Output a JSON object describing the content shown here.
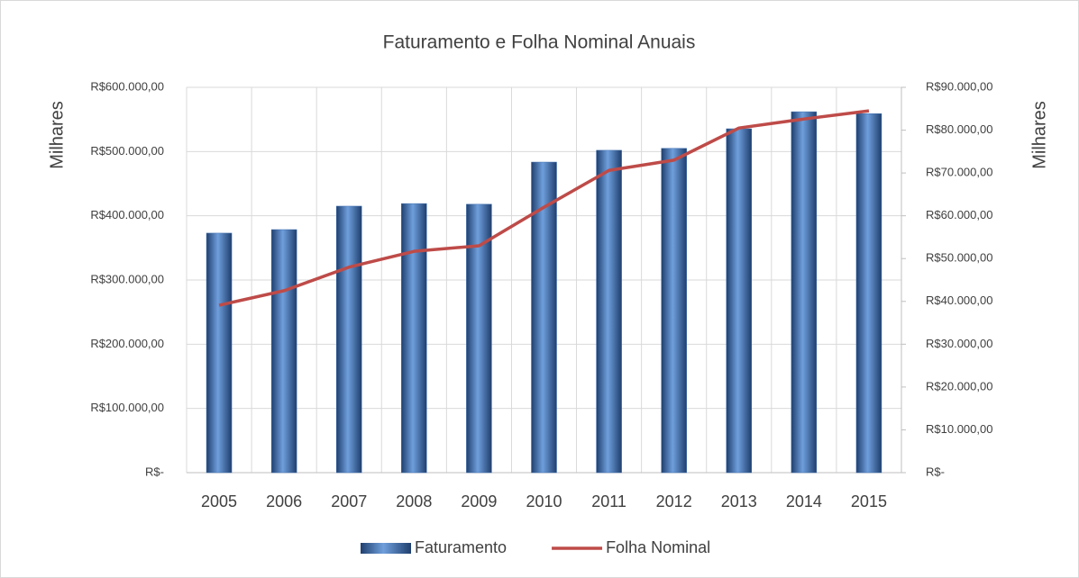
{
  "chart_data": {
    "type": "bar",
    "title": "Faturamento e Folha Nominal Anuais",
    "ylabel": "Milhares",
    "y2label": "Milhares",
    "categories": [
      "2005",
      "2006",
      "2007",
      "2008",
      "2009",
      "2010",
      "2011",
      "2012",
      "2013",
      "2014",
      "2015"
    ],
    "series": [
      {
        "name": "Faturamento",
        "type": "bar",
        "color": "#3f6fb0",
        "values": [
          373000,
          378500,
          415000,
          419000,
          418000,
          483600,
          502000,
          505000,
          535500,
          562000,
          559000
        ]
      },
      {
        "name": "Folha Nominal",
        "type": "line",
        "axis": "y2",
        "color": "#be4b48",
        "values": [
          39100,
          42500,
          48000,
          51700,
          53000,
          62000,
          70600,
          73000,
          80500,
          82600,
          84500
        ]
      }
    ],
    "ylim": [
      0,
      600000
    ],
    "yticks": [
      {
        "value": 0,
        "label": "R$-"
      },
      {
        "value": 100000,
        "label": "R$100.000,00"
      },
      {
        "value": 200000,
        "label": "R$200.000,00"
      },
      {
        "value": 300000,
        "label": "R$300.000,00"
      },
      {
        "value": 400000,
        "label": "R$400.000,00"
      },
      {
        "value": 500000,
        "label": "R$500.000,00"
      },
      {
        "value": 600000,
        "label": "R$600.000,00"
      }
    ],
    "y2lim": [
      0,
      90000
    ],
    "y2ticks": [
      {
        "value": 0,
        "label": "R$-"
      },
      {
        "value": 10000,
        "label": "R$10.000,00"
      },
      {
        "value": 20000,
        "label": "R$20.000,00"
      },
      {
        "value": 30000,
        "label": "R$30.000,00"
      },
      {
        "value": 40000,
        "label": "R$40.000,00"
      },
      {
        "value": 50000,
        "label": "R$50.000,00"
      },
      {
        "value": 60000,
        "label": "R$60.000,00"
      },
      {
        "value": 70000,
        "label": "R$70.000,00"
      },
      {
        "value": 80000,
        "label": "R$80.000,00"
      },
      {
        "value": 90000,
        "label": "R$90.000,00"
      }
    ],
    "grid": true,
    "legend": "bottom"
  }
}
